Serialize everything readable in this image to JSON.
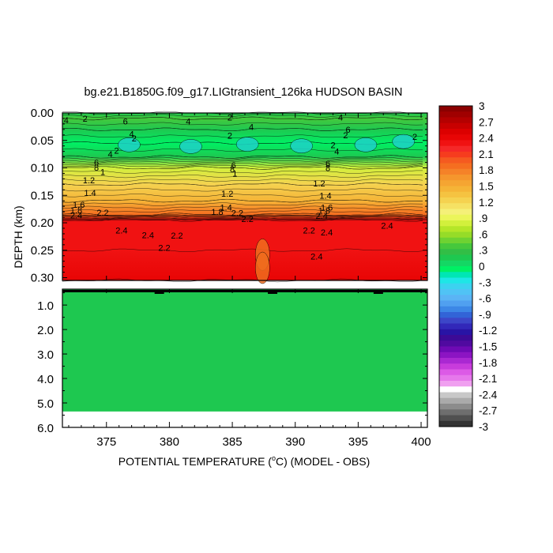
{
  "chart_data": {
    "type": "heatmap",
    "title": "bg.e21.B1850G.f09_g17.LIGtransient_126ka HUDSON BASIN",
    "xlabel": "POTENTIAL TEMPERATURE (°C) (MODEL - OBS)",
    "xlabel_parts": {
      "prefix": "POTENTIAL TEMPERATURE (",
      "degree": "o",
      "suffix": "C) (MODEL - OBS)"
    },
    "ylabel": "DEPTH (km)",
    "xlim": [
      371.5,
      400.5
    ],
    "x_ticks": [
      "375",
      "380",
      "385",
      "390",
      "395",
      "400"
    ],
    "x_tick_values": [
      375,
      380,
      385,
      390,
      395,
      400
    ],
    "upper_panel": {
      "ylim": [
        0.0,
        0.305
      ],
      "y_ticks": [
        "0.00",
        "0.05",
        "0.10",
        "0.15",
        "0.20",
        "0.25",
        "0.30"
      ],
      "y_tick_values": [
        0.0,
        0.05,
        0.1,
        0.15,
        0.2,
        0.25,
        0.3
      ],
      "profile": [
        {
          "depth": 0.0,
          "value": 0.2
        },
        {
          "depth": 0.01,
          "value": 0.4
        },
        {
          "depth": 0.03,
          "value": 0.2
        },
        {
          "depth": 0.055,
          "value": 0.0
        },
        {
          "depth": 0.08,
          "value": 0.2
        },
        {
          "depth": 0.1,
          "value": 0.8
        },
        {
          "depth": 0.13,
          "value": 1.2
        },
        {
          "depth": 0.16,
          "value": 1.5
        },
        {
          "depth": 0.185,
          "value": 1.9
        },
        {
          "depth": 0.195,
          "value": 2.3
        },
        {
          "depth": 0.25,
          "value": 2.3
        },
        {
          "depth": 0.305,
          "value": 2.4
        }
      ],
      "contour_labels": [
        {
          "text": "4",
          "x": 371.8,
          "d": 0.013
        },
        {
          "text": "2",
          "x": 373.3,
          "d": 0.01
        },
        {
          "text": "6",
          "x": 376.5,
          "d": 0.015
        },
        {
          "text": "4",
          "x": 381.5,
          "d": 0.015
        },
        {
          "text": "2",
          "x": 384.8,
          "d": 0.008
        },
        {
          "text": "4",
          "x": 386.5,
          "d": 0.025
        },
        {
          "text": "4",
          "x": 393.6,
          "d": 0.008
        },
        {
          "text": "6",
          "x": 394.2,
          "d": 0.03
        },
        {
          "text": "2",
          "x": 394.0,
          "d": 0.04
        },
        {
          "text": "2",
          "x": 399.5,
          "d": 0.043
        },
        {
          "text": "4",
          "x": 377.0,
          "d": 0.038
        },
        {
          "text": "2",
          "x": 377.2,
          "d": 0.046
        },
        {
          "text": "2",
          "x": 375.8,
          "d": 0.068
        },
        {
          "text": "4",
          "x": 375.3,
          "d": 0.075
        },
        {
          "text": "6",
          "x": 374.2,
          "d": 0.09
        },
        {
          "text": "8",
          "x": 374.2,
          "d": 0.099
        },
        {
          "text": "1",
          "x": 374.7,
          "d": 0.107
        },
        {
          "text": "1.2",
          "x": 373.6,
          "d": 0.122
        },
        {
          "text": "1.4",
          "x": 373.7,
          "d": 0.145
        },
        {
          "text": "1.6",
          "x": 372.8,
          "d": 0.167
        },
        {
          "text": "1.8",
          "x": 372.6,
          "d": 0.177
        },
        {
          "text": "2.4",
          "x": 372.6,
          "d": 0.186
        },
        {
          "text": "2.2",
          "x": 374.7,
          "d": 0.181
        },
        {
          "text": "2.4",
          "x": 376.2,
          "d": 0.214
        },
        {
          "text": "2.4",
          "x": 378.3,
          "d": 0.222
        },
        {
          "text": "2.2",
          "x": 380.6,
          "d": 0.223
        },
        {
          "text": "2.2",
          "x": 379.6,
          "d": 0.245
        },
        {
          "text": "2",
          "x": 384.8,
          "d": 0.041
        },
        {
          "text": "6",
          "x": 385.1,
          "d": 0.095
        },
        {
          "text": "8",
          "x": 385.0,
          "d": 0.102
        },
        {
          "text": "1",
          "x": 385.2,
          "d": 0.11
        },
        {
          "text": "1.2",
          "x": 384.6,
          "d": 0.147
        },
        {
          "text": "1.4",
          "x": 384.5,
          "d": 0.172
        },
        {
          "text": "1.8",
          "x": 383.8,
          "d": 0.18
        },
        {
          "text": "2.2",
          "x": 385.4,
          "d": 0.182
        },
        {
          "text": "2.2",
          "x": 386.2,
          "d": 0.193
        },
        {
          "text": "2",
          "x": 393.0,
          "d": 0.058
        },
        {
          "text": "4",
          "x": 393.3,
          "d": 0.07
        },
        {
          "text": "6",
          "x": 392.6,
          "d": 0.092
        },
        {
          "text": "8",
          "x": 392.6,
          "d": 0.1
        },
        {
          "text": "1.2",
          "x": 391.9,
          "d": 0.128
        },
        {
          "text": "1.4",
          "x": 392.4,
          "d": 0.15
        },
        {
          "text": "1.6",
          "x": 392.5,
          "d": 0.172
        },
        {
          "text": "1.8",
          "x": 392.3,
          "d": 0.178
        },
        {
          "text": "2.4",
          "x": 392.1,
          "d": 0.187
        },
        {
          "text": "2.2",
          "x": 391.1,
          "d": 0.214
        },
        {
          "text": "2.4",
          "x": 392.5,
          "d": 0.217
        },
        {
          "text": "2.4",
          "x": 397.3,
          "d": 0.205
        },
        {
          "text": "2.4",
          "x": 391.7,
          "d": 0.261
        }
      ]
    },
    "lower_panel": {
      "ylim": [
        0.35,
        6.0
      ],
      "y_ticks": [
        "1.0",
        "2.0",
        "3.0",
        "4.0",
        "5.0",
        "6.0"
      ],
      "y_tick_values": [
        1.0,
        2.0,
        3.0,
        4.0,
        5.0,
        6.0
      ],
      "bottom_depth": 5.35,
      "fill_value": 0.2
    },
    "colorbar": {
      "labels": [
        "3",
        "2.7",
        "2.4",
        "2.1",
        "1.8",
        "1.5",
        "1.2",
        ".9",
        ".6",
        ".3",
        "0",
        "-.3",
        "-.6",
        "-.9",
        "-1.2",
        "-1.5",
        "-1.8",
        "-2.1",
        "-2.4",
        "-2.7",
        "-3"
      ],
      "colors": [
        "#8b0000",
        "#a00000",
        "#b40000",
        "#c80000",
        "#dc0000",
        "#e80505",
        "#f01212",
        "#f52828",
        "#f63c1e",
        "#f55a20",
        "#f56e20",
        "#f58228",
        "#f5962d",
        "#f5a532",
        "#f5b437",
        "#f5c341",
        "#f5d250",
        "#f5e164",
        "#f5f078",
        "#ebf55a",
        "#d2f03c",
        "#b4e628",
        "#96dc28",
        "#6ed232",
        "#46c83c",
        "#32be46",
        "#1ec850",
        "#14d764",
        "#00f064",
        "#00e6b4",
        "#1ee6e6",
        "#3cd2f0",
        "#50c3f5",
        "#5ab4f5",
        "#50a0f0",
        "#3c87e6",
        "#3264d7",
        "#3c46c8",
        "#3228b9",
        "#2814a5",
        "#3c0a96",
        "#500aa0",
        "#6e0ab4",
        "#8c14c3",
        "#aa28d2",
        "#c83cdc",
        "#dc5ae6",
        "#e678eb",
        "#f0a0f0",
        "#ffffff",
        "#c8c8c8",
        "#aaaaaa",
        "#8c8c8c",
        "#6e6e6e",
        "#505050",
        "#323232"
      ]
    }
  }
}
